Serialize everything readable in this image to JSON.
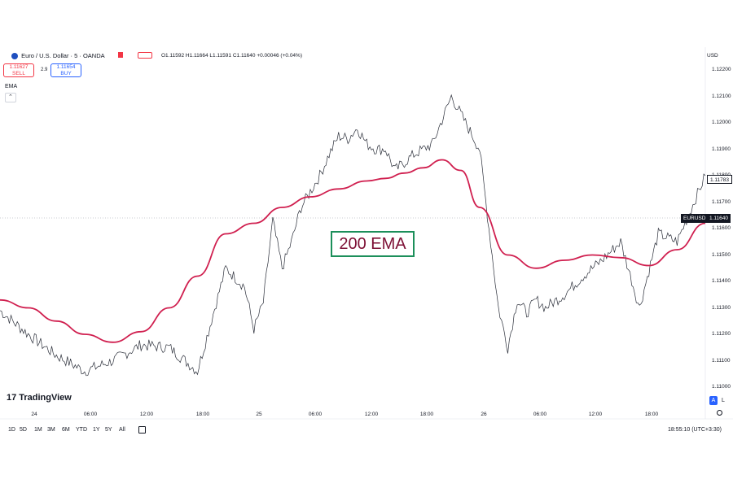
{
  "header": {
    "symbol": "Euro / U.S. Dollar · 5 · OANDA",
    "ohlc": "O1.11592  H1.11664  L1.11591  C1.11640  +0.00046 (+0.04%)",
    "currency": "USD",
    "indicator": "EMA",
    "sell_price": "1.11627",
    "sell_label": "SELL",
    "buy_price": "1.11654",
    "buy_label": "BUY",
    "spread": "2.9"
  },
  "annotation": {
    "label": "200 EMA"
  },
  "branding": {
    "logo": "TradingView"
  },
  "range_buttons": [
    "1D",
    "5D",
    "1M",
    "3M",
    "6M",
    "YTD",
    "1Y",
    "5Y",
    "All"
  ],
  "footer": {
    "time": "18:55:10 (UTC+3:30)",
    "a_button": "A",
    "l_button": "L"
  },
  "price_tags": {
    "current_value": "1.11783",
    "symbol_tag": "EURUSD",
    "symbol_value": "1.11640"
  },
  "colors": {
    "ema": "#d01f4f",
    "price": "#2a2e39",
    "box_border": "#1c8f5a",
    "box_text": "#7d1035"
  },
  "icons": {
    "flag": "flag-icon",
    "settings": "gear-icon",
    "calendar": "calendar-icon"
  },
  "chart_data": {
    "type": "line",
    "ylim": [
      1.11,
      1.122
    ],
    "y_ticks": [
      "1.12200",
      "1.12100",
      "1.12000",
      "1.11900",
      "1.11800",
      "1.11700",
      "1.11600",
      "1.11500",
      "1.11400",
      "1.11300",
      "1.11200",
      "1.11100",
      "1.11000"
    ],
    "x_ticks": [
      "24",
      "06:00",
      "12:00",
      "18:00",
      "25",
      "06:00",
      "12:00",
      "18:00",
      "26",
      "06:00",
      "12:00",
      "18:00"
    ],
    "price_series": {
      "x": [
        0,
        3,
        6,
        9,
        12,
        15,
        18,
        21,
        24,
        26,
        27,
        28,
        29,
        30,
        31,
        32,
        34,
        35,
        36,
        37,
        38,
        39,
        40,
        41,
        42,
        44,
        46,
        48,
        51,
        53,
        54,
        55,
        56,
        57,
        58,
        60,
        62,
        64,
        66,
        68,
        70,
        72,
        75
      ],
      "values": [
        1.1129,
        1.112,
        1.1112,
        1.1106,
        1.111,
        1.1116,
        1.1115,
        1.1106,
        1.1145,
        1.1138,
        1.1122,
        1.1132,
        1.1163,
        1.1145,
        1.1155,
        1.1168,
        1.118,
        1.1188,
        1.1195,
        1.1194,
        1.1198,
        1.1192,
        1.119,
        1.119,
        1.1182,
        1.1188,
        1.1192,
        1.121,
        1.119,
        1.113,
        1.1115,
        1.1133,
        1.1128,
        1.1133,
        1.113,
        1.1135,
        1.1142,
        1.1148,
        1.1155,
        1.113,
        1.1158,
        1.1155,
        1.118
      ]
    },
    "ema_series": {
      "name": "200 EMA",
      "x": [
        0,
        3,
        6,
        9,
        12,
        15,
        18,
        21,
        24,
        27,
        30,
        33,
        36,
        39,
        41,
        43,
        45,
        47,
        49,
        51,
        54,
        57,
        60,
        63,
        66,
        69,
        72,
        75
      ],
      "values": [
        1.1133,
        1.113,
        1.1125,
        1.112,
        1.1117,
        1.1121,
        1.113,
        1.1142,
        1.1158,
        1.1162,
        1.1168,
        1.1172,
        1.1175,
        1.1178,
        1.1179,
        1.1181,
        1.1183,
        1.1186,
        1.1182,
        1.1168,
        1.115,
        1.1145,
        1.1148,
        1.115,
        1.1149,
        1.1146,
        1.1152,
        1.1162
      ]
    }
  }
}
